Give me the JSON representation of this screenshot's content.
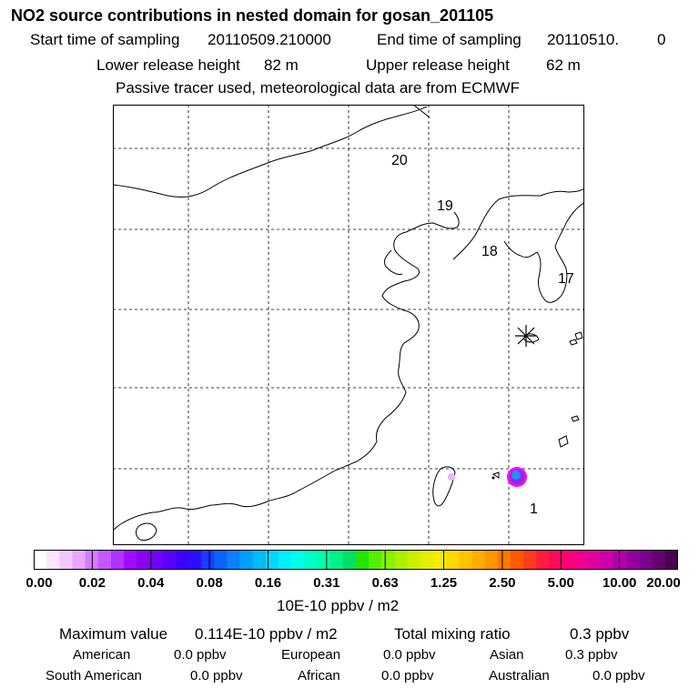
{
  "title": "NO2 source contributions in nested domain for gosan_201105",
  "sampling": {
    "start_label": "Start time of sampling",
    "start_value": "20110509.210000",
    "end_label": "End time of sampling",
    "end_value": "20110510.",
    "end_suffix": "0"
  },
  "release": {
    "lower_label": "Lower release height",
    "lower_value": "82 m",
    "upper_label": "Upper release height",
    "upper_value": "62 m"
  },
  "note": "Passive tracer used, meteorological data are from ECMWF",
  "map": {
    "trajectory_labels": [
      "20",
      "19",
      "18",
      "17",
      "1"
    ],
    "receptor_marker": "star-icon",
    "colors": {
      "coast": "#000000",
      "grid": "#000000",
      "plume_core": "#1e90ff",
      "plume_mid": "#8a2be2",
      "plume_edge": "#ff00ff",
      "plume_faint": "#f0b4ff"
    }
  },
  "colorbar": {
    "ticks": [
      "0.00",
      "0.02",
      "0.04",
      "0.08",
      "0.16",
      "0.31",
      "0.63",
      "1.25",
      "2.50",
      "5.00",
      "10.00",
      "20.00"
    ],
    "unit": "10E-10 ppbv / m2",
    "colors": [
      "#ffffff",
      "#fbe6ff",
      "#f3c8ff",
      "#e8a6ff",
      "#d57cff",
      "#c658ff",
      "#b333ff",
      "#a10bff",
      "#8d00f5",
      "#7400ff",
      "#5c00ff",
      "#3f00ff",
      "#2a10ff",
      "#1c3cff",
      "#0a64ff",
      "#0a82ff",
      "#00a0ff",
      "#00bcff",
      "#00d8ff",
      "#00f0ff",
      "#00ffe8",
      "#00ffc8",
      "#00ffaa",
      "#00f08a",
      "#00e066",
      "#22e400",
      "#55ee00",
      "#88f000",
      "#aaee00",
      "#ccee00",
      "#e6ee00",
      "#f8ec00",
      "#ffd800",
      "#ffc400",
      "#ffae00",
      "#ff9600",
      "#ff7800",
      "#ff5a00",
      "#ff3c1e",
      "#ff1e3c",
      "#ff0a5a",
      "#ff0078",
      "#f00090",
      "#e000a0",
      "#cc00aa",
      "#b000a8",
      "#9400a0",
      "#7a0090",
      "#640070",
      "#4a0050"
    ]
  },
  "summary": {
    "max_label": "Maximum value",
    "max_value": "0.114E-10 ppbv / m2",
    "total_label": "Total mixing ratio",
    "total_value": "0.3 ppbv",
    "regions": [
      {
        "name": "American",
        "value": "0.0 ppbv"
      },
      {
        "name": "European",
        "value": "0.0 ppbv"
      },
      {
        "name": "Asian",
        "value": "0.3 ppbv"
      },
      {
        "name": "South American",
        "value": "0.0 ppbv"
      },
      {
        "name": "African",
        "value": "0.0 ppbv"
      },
      {
        "name": "Australian",
        "value": "0.0 ppbv"
      }
    ]
  }
}
